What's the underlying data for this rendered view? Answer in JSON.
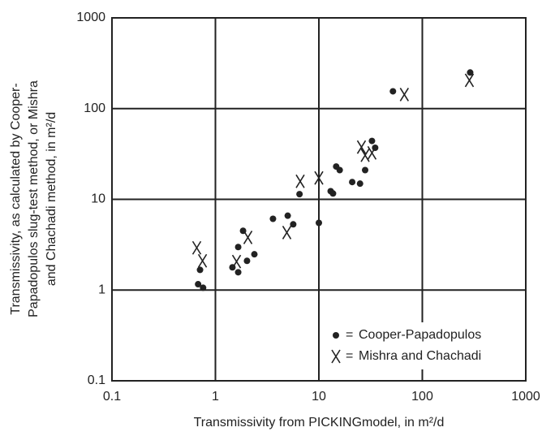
{
  "chart_data": {
    "type": "scatter",
    "x_label": "Transmissivity from PICKINGmodel, in m²/d",
    "y_label": [
      "Transmissivity, as calculated by Cooper-",
      "Papadopulos slug-test method, or Mishra",
      "and Chachadi method, in m²/d"
    ],
    "xscale": "log",
    "yscale": "log",
    "xlim": [
      0.1,
      1000
    ],
    "ylim": [
      0.1,
      1000
    ],
    "xticks": [
      0.1,
      1,
      10,
      100,
      1000
    ],
    "yticks": [
      0.1,
      1,
      10,
      100,
      1000
    ],
    "grid": true,
    "legend": "lower right",
    "legend_separator": "=",
    "series": [
      {
        "name": "Cooper-Papadopulos",
        "marker": "dot",
        "color": "#222222",
        "x": [
          0.68,
          0.76,
          0.71,
          1.46,
          1.66,
          1.66,
          1.85,
          2.02,
          2.38,
          3.6,
          5.0,
          5.65,
          6.5,
          10.0,
          13,
          13.7,
          14.7,
          15.9,
          21,
          25,
          28,
          32.6,
          35,
          52,
          290
        ],
        "y": [
          1.16,
          1.06,
          1.67,
          1.78,
          1.57,
          2.98,
          4.5,
          2.1,
          2.48,
          6.1,
          6.6,
          5.3,
          11.4,
          5.5,
          12.3,
          11.6,
          23,
          21,
          15.5,
          14.9,
          21,
          44,
          37,
          155,
          250
        ]
      },
      {
        "name": "Mishra and Chachadi",
        "marker": "X",
        "color": "#222222",
        "x": [
          0.66,
          0.75,
          1.6,
          2.06,
          4.9,
          6.6,
          10,
          25.8,
          28,
          32.6,
          67,
          285
        ],
        "y": [
          2.92,
          2.1,
          2.06,
          3.8,
          4.3,
          15.8,
          17.2,
          37.6,
          30.6,
          32.5,
          143,
          205
        ]
      }
    ]
  }
}
